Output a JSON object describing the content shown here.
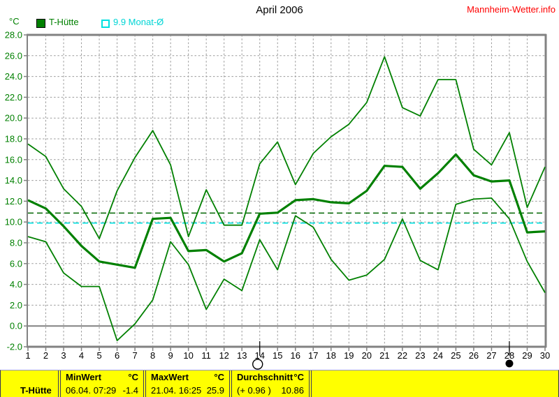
{
  "header": {
    "title": "April 2006",
    "site": "Mannheim-Wetter.info",
    "unit_label": "°C"
  },
  "legend": {
    "series1_label": "T-Hütte",
    "series2_label": "9.9 Monat-Ø"
  },
  "colors": {
    "series_green": "#008000",
    "avg_line_green": "#006600",
    "month_avg_cyan": "#00e0e0",
    "grid_gray": "#9a9a9a",
    "border_gray": "#828282",
    "site_red": "#ff0000",
    "table_yellow": "#ffff00"
  },
  "chart_data": {
    "type": "line",
    "title": "April 2006",
    "ylabel": "°C",
    "ylim": [
      -2,
      28
    ],
    "ytick_step": 2,
    "grid": true,
    "x": [
      1,
      2,
      3,
      4,
      5,
      6,
      7,
      8,
      9,
      10,
      11,
      12,
      13,
      14,
      15,
      16,
      17,
      18,
      19,
      20,
      21,
      22,
      23,
      24,
      25,
      26,
      27,
      28,
      29,
      30
    ],
    "series": [
      {
        "name": "T-Hütte daily max",
        "role": "max",
        "values": [
          17.5,
          16.3,
          13.2,
          11.5,
          8.4,
          13.0,
          16.2,
          18.8,
          15.5,
          8.6,
          13.1,
          9.7,
          9.7,
          15.6,
          17.7,
          13.6,
          16.6,
          18.2,
          19.4,
          21.5,
          25.9,
          21.0,
          20.2,
          23.7,
          23.7,
          17.0,
          15.5,
          18.6,
          11.4,
          15.3
        ]
      },
      {
        "name": "T-Hütte daily mean",
        "role": "mean",
        "values": [
          12.1,
          11.3,
          9.6,
          7.7,
          6.2,
          5.9,
          5.6,
          10.3,
          10.4,
          7.2,
          7.3,
          6.2,
          7.0,
          10.8,
          10.9,
          12.1,
          12.2,
          11.9,
          11.8,
          13.0,
          15.4,
          15.3,
          13.2,
          14.7,
          16.5,
          14.5,
          13.9,
          14.0,
          9.0,
          9.1
        ]
      },
      {
        "name": "T-Hütte daily min",
        "role": "min",
        "values": [
          8.6,
          8.1,
          5.1,
          3.8,
          3.8,
          -1.4,
          0.2,
          2.5,
          8.1,
          5.9,
          1.6,
          4.5,
          3.4,
          8.3,
          5.4,
          10.6,
          9.5,
          6.4,
          4.4,
          4.9,
          6.4,
          10.3,
          6.3,
          5.4,
          11.7,
          12.2,
          12.3,
          10.3,
          6.2,
          3.2
        ]
      }
    ],
    "reference_lines": [
      {
        "label": "Durchschnitt",
        "value": 10.86,
        "color": "#006600"
      },
      {
        "label": "9.9 Monat-Ø",
        "value": 9.9,
        "color": "#00e0e0"
      }
    ],
    "moon_markers": [
      {
        "day": 14,
        "phase": "full"
      },
      {
        "day": 28,
        "phase": "new"
      }
    ]
  },
  "table": {
    "row_label": "T-Hütte",
    "columns": [
      {
        "header": "MinWert",
        "unit": "°C",
        "value": "06.04. 07:29",
        "number": "-1.4"
      },
      {
        "header": "MaxWert",
        "unit": "°C",
        "value": "21.04. 16:25",
        "number": "25.9"
      },
      {
        "header": "Durchschnitt",
        "unit": "°C",
        "value": "(+ 0.96 )",
        "number": "10.86"
      }
    ]
  }
}
